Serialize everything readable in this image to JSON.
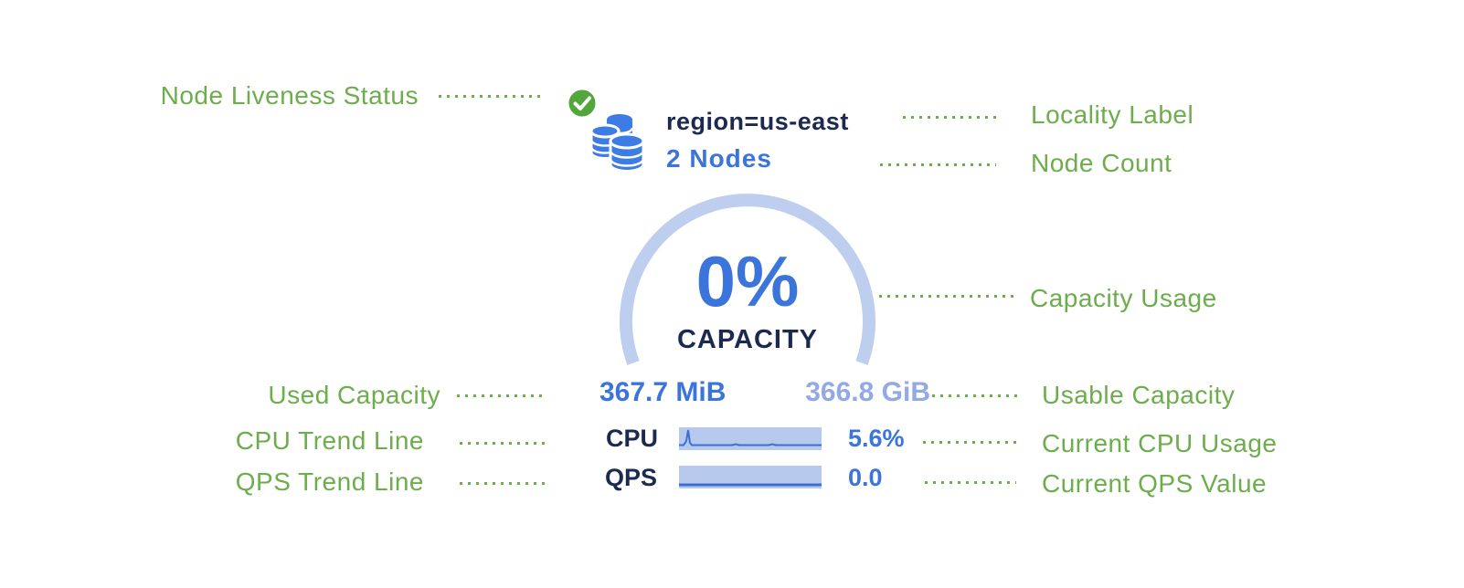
{
  "colors": {
    "annotation-green": "#6CAD4C",
    "check-green": "#53A63B",
    "db-blue": "#3D7BE5",
    "navy": "#1B2A4E",
    "blue": "#3B75DB",
    "faded-blue": "#92A9E4",
    "arc-blue": "#BDCEEF",
    "bar-fill": "#B7C9ED",
    "bar-line": "#3B6FD6"
  },
  "annotations": {
    "left": [
      {
        "label": "Node Liveness Status"
      },
      {
        "label": "Used Capacity"
      },
      {
        "label": "CPU Trend Line"
      },
      {
        "label": "QPS Trend Line"
      }
    ],
    "right": [
      {
        "label": "Locality Label"
      },
      {
        "label": "Node Count"
      },
      {
        "label": "Capacity Usage"
      },
      {
        "label": "Usable Capacity"
      },
      {
        "label": "Current CPU Usage"
      },
      {
        "label": "Current QPS Value"
      }
    ]
  },
  "node": {
    "liveness_icon": "check-circle",
    "node_icon": "database-stack",
    "locality": "region=us-east",
    "node_count": "2 Nodes",
    "capacity_percent": "0%",
    "capacity_caption": "CAPACITY",
    "used_capacity": "367.7 MiB",
    "usable_capacity": "366.8 GiB",
    "cpu_label": "CPU",
    "cpu_value": "5.6%",
    "qps_label": "QPS",
    "qps_value": "0.0"
  },
  "sparklines": {
    "cpu": [
      [
        0,
        19.5
      ],
      [
        5,
        19.5
      ],
      [
        8,
        15
      ],
      [
        10,
        3
      ],
      [
        12,
        17
      ],
      [
        14,
        19.5
      ],
      [
        58,
        19.5
      ],
      [
        62,
        18.5
      ],
      [
        66,
        19.5
      ],
      [
        98,
        19.5
      ],
      [
        102,
        18.5
      ],
      [
        106,
        19.5
      ],
      [
        156,
        19.5
      ]
    ],
    "qps": [
      [
        0,
        21
      ],
      [
        156,
        21
      ]
    ]
  }
}
